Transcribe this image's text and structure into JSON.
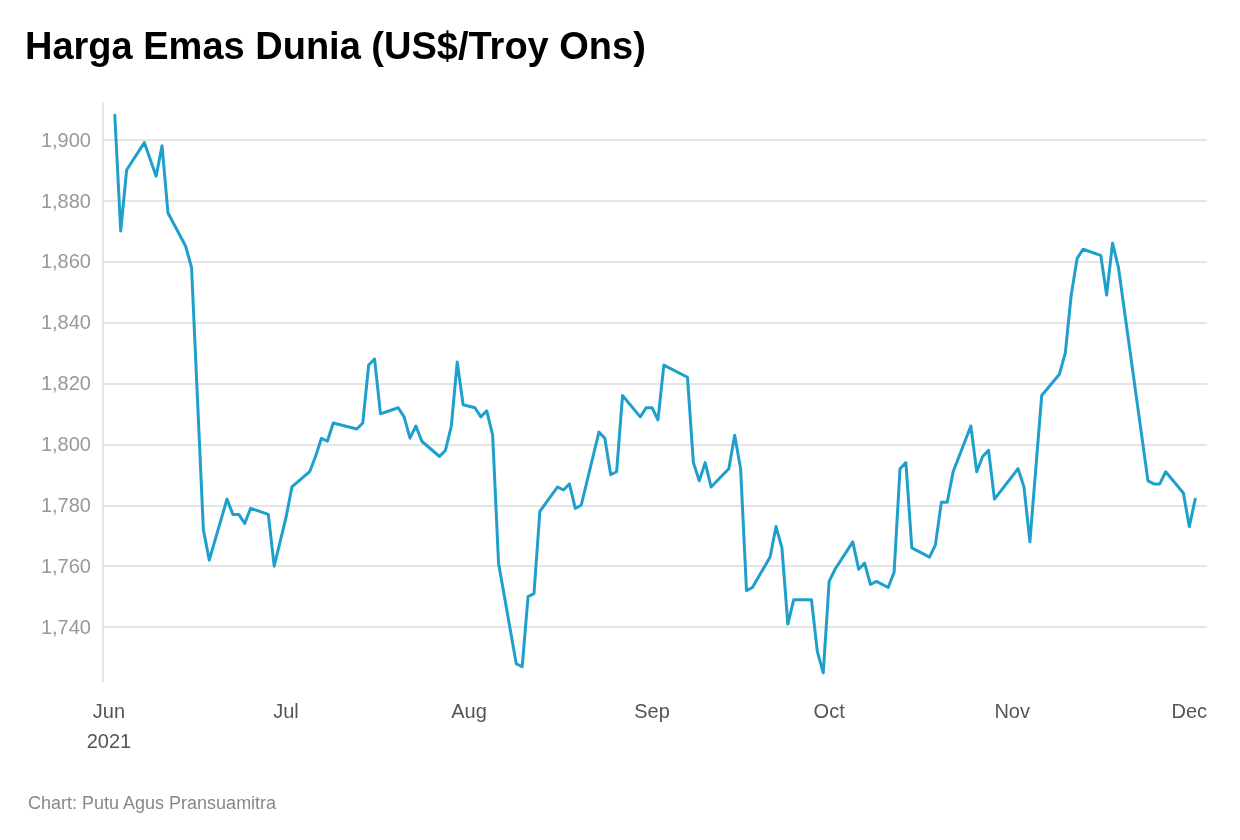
{
  "chart_data": {
    "type": "line",
    "title": "Harga Emas Dunia (US$/Troy Ons)",
    "annotations": [
      "Chart: Putu Agus Pransuamitra"
    ],
    "x": [
      "2021-06-02",
      "2021-06-03",
      "2021-06-04",
      "2021-06-07",
      "2021-06-09",
      "2021-06-10",
      "2021-06-11",
      "2021-06-14",
      "2021-06-15",
      "2021-06-17",
      "2021-06-18",
      "2021-06-21",
      "2021-06-22",
      "2021-06-23",
      "2021-06-24",
      "2021-06-25",
      "2021-06-28",
      "2021-06-29",
      "2021-07-01",
      "2021-07-02",
      "2021-07-05",
      "2021-07-06",
      "2021-07-07",
      "2021-07-08",
      "2021-07-09",
      "2021-07-13",
      "2021-07-14",
      "2021-07-15",
      "2021-07-16",
      "2021-07-17",
      "2021-07-20",
      "2021-07-21",
      "2021-07-22",
      "2021-07-23",
      "2021-07-24",
      "2021-07-27",
      "2021-07-28",
      "2021-07-29",
      "2021-07-30",
      "2021-07-31",
      "2021-08-02",
      "2021-08-03",
      "2021-08-04",
      "2021-08-05",
      "2021-08-06",
      "2021-08-09",
      "2021-08-10",
      "2021-08-11",
      "2021-08-12",
      "2021-08-13",
      "2021-08-16",
      "2021-08-17",
      "2021-08-18",
      "2021-08-19",
      "2021-08-20",
      "2021-08-23",
      "2021-08-24",
      "2021-08-25",
      "2021-08-26",
      "2021-08-27",
      "2021-08-30",
      "2021-08-31",
      "2021-09-01",
      "2021-09-02",
      "2021-09-03",
      "2021-09-07",
      "2021-09-08",
      "2021-09-09",
      "2021-09-10",
      "2021-09-11",
      "2021-09-14",
      "2021-09-15",
      "2021-09-16",
      "2021-09-17",
      "2021-09-18",
      "2021-09-21",
      "2021-09-22",
      "2021-09-23",
      "2021-09-24",
      "2021-09-25",
      "2021-09-28",
      "2021-09-29",
      "2021-09-30",
      "2021-10-01",
      "2021-10-02",
      "2021-10-05",
      "2021-10-06",
      "2021-10-07",
      "2021-10-08",
      "2021-10-09",
      "2021-10-11",
      "2021-10-12",
      "2021-10-13",
      "2021-10-14",
      "2021-10-15",
      "2021-10-18",
      "2021-10-19",
      "2021-10-20",
      "2021-10-21",
      "2021-10-22",
      "2021-10-25",
      "2021-10-26",
      "2021-10-27",
      "2021-10-28",
      "2021-10-29",
      "2021-11-02",
      "2021-11-03",
      "2021-11-04",
      "2021-11-06",
      "2021-11-09",
      "2021-11-10",
      "2021-11-11",
      "2021-11-12",
      "2021-11-13",
      "2021-11-16",
      "2021-11-17",
      "2021-11-18",
      "2021-11-19",
      "2021-11-24",
      "2021-11-25",
      "2021-11-26",
      "2021-11-27",
      "2021-11-30",
      "2021-12-01",
      "2021-12-02"
    ],
    "series": [
      {
        "color": "#1f9fcc",
        "values": [
          1908,
          1870,
          1890,
          1899,
          1888,
          1898,
          1876,
          1865,
          1858,
          1772,
          1762,
          1782,
          1777,
          1777,
          1774,
          1779,
          1777,
          1760,
          1776,
          1786,
          1791,
          1796,
          1802,
          1801,
          1807,
          1805,
          1807,
          1826,
          1828,
          1810,
          1812,
          1809,
          1802,
          1806,
          1801,
          1796,
          1798,
          1806,
          1827,
          1813,
          1812,
          1809,
          1811,
          1803,
          1761,
          1728,
          1727,
          1750,
          1751,
          1778,
          1786,
          1785,
          1787,
          1779,
          1780,
          1804,
          1802,
          1790,
          1791,
          1816,
          1809,
          1812,
          1812,
          1808,
          1826,
          1822,
          1794,
          1788,
          1794,
          1786,
          1792,
          1803,
          1792,
          1752,
          1753,
          1763,
          1773,
          1766,
          1741,
          1749,
          1749,
          1732,
          1725,
          1755,
          1759,
          1768,
          1759,
          1761,
          1754,
          1755,
          1753,
          1758,
          1792,
          1794,
          1766,
          1763,
          1767,
          1781,
          1781,
          1791,
          1806,
          1791,
          1796,
          1798,
          1782,
          1792,
          1786,
          1768,
          1816,
          1823,
          1830,
          1849,
          1861,
          1864,
          1862,
          1849,
          1866,
          1858,
          1788,
          1787,
          1787,
          1791,
          1784,
          1773,
          1782
        ]
      }
    ],
    "xlim": [
      "2021-05-31",
      "2021-12-04"
    ],
    "xticks": [
      {
        "value": "2021-06-01",
        "label": "Jun\n2021"
      },
      {
        "value": "2021-07-01",
        "label": "Jul"
      },
      {
        "value": "2021-08-01",
        "label": "Aug"
      },
      {
        "value": "2021-09-01",
        "label": "Sep"
      },
      {
        "value": "2021-10-01",
        "label": "Oct"
      },
      {
        "value": "2021-11-01",
        "label": "Nov"
      },
      {
        "value": "2021-12-01",
        "label": "Dec"
      }
    ],
    "ylim": [
      1722,
      1912
    ],
    "yticks": [
      {
        "value": 1740,
        "label": "1,740"
      },
      {
        "value": 1760,
        "label": "1,760"
      },
      {
        "value": 1780,
        "label": "1,780"
      },
      {
        "value": 1800,
        "label": "1,800"
      },
      {
        "value": 1820,
        "label": "1,820"
      },
      {
        "value": 1840,
        "label": "1,840"
      },
      {
        "value": 1860,
        "label": "1,860"
      },
      {
        "value": 1880,
        "label": "1,880"
      },
      {
        "value": 1900,
        "label": "1,900"
      }
    ],
    "grid": "y",
    "marker": "none",
    "line_style": "solid"
  }
}
